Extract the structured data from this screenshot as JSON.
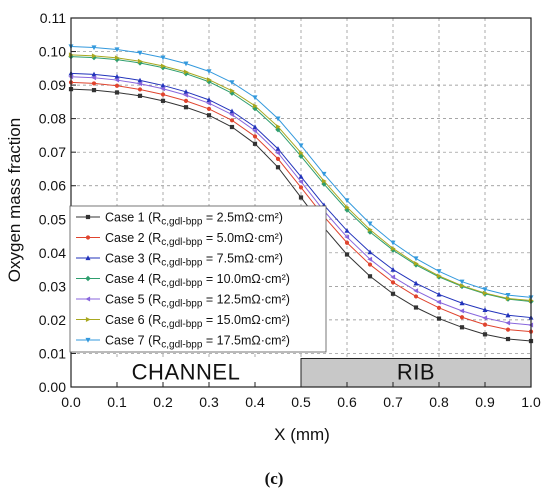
{
  "chart_data": {
    "type": "line",
    "xlabel": "X (mm)",
    "ylabel": "Oxygen mass fraction",
    "xlim": [
      0.0,
      1.0
    ],
    "ylim": [
      0.0,
      0.11
    ],
    "x_ticks": [
      "0.0",
      "0.1",
      "0.2",
      "0.3",
      "0.4",
      "0.5",
      "0.6",
      "0.7",
      "0.8",
      "0.9",
      "1.0"
    ],
    "y_ticks": [
      "0.00",
      "0.01",
      "0.02",
      "0.03",
      "0.04",
      "0.05",
      "0.06",
      "0.07",
      "0.08",
      "0.09",
      "0.10",
      "0.11"
    ],
    "grid": "dashed",
    "legend_position": "lower-left",
    "regions": [
      {
        "label": "CHANNEL",
        "x_range": [
          0.0,
          0.5
        ],
        "fill": "#ffffff"
      },
      {
        "label": "RIB",
        "x_range": [
          0.5,
          1.0
        ],
        "fill": "#c8c8c8"
      }
    ],
    "region_band_ylim": [
      0.0,
      0.0085
    ],
    "caption": "(c)",
    "x": [
      0.0,
      0.05,
      0.1,
      0.15,
      0.2,
      0.25,
      0.3,
      0.35,
      0.4,
      0.45,
      0.5,
      0.55,
      0.6,
      0.65,
      0.7,
      0.75,
      0.8,
      0.85,
      0.9,
      0.95,
      1.0
    ],
    "series": [
      {
        "legend_prefix": "Case 1 (R",
        "legend_sub": "c,gdl-bpp",
        "legend_suffix": " = 2.5mΩ·cm²)",
        "color": "#333333",
        "marker": "square",
        "values": [
          0.0888,
          0.0885,
          0.0878,
          0.0868,
          0.0853,
          0.0834,
          0.081,
          0.0775,
          0.0725,
          0.0655,
          0.0565,
          0.0475,
          0.0395,
          0.033,
          0.0278,
          0.0237,
          0.0204,
          0.0178,
          0.0157,
          0.0143,
          0.0137
        ]
      },
      {
        "legend_prefix": "Case 2 (R",
        "legend_sub": "c,gdl-bpp",
        "legend_suffix": " = 5.0mΩ·cm²)",
        "color": "#e0442e",
        "marker": "circle",
        "values": [
          0.0908,
          0.0905,
          0.0898,
          0.0887,
          0.0872,
          0.0853,
          0.0829,
          0.0795,
          0.0747,
          0.068,
          0.0595,
          0.0508,
          0.043,
          0.0365,
          0.0312,
          0.027,
          0.0236,
          0.0208,
          0.0186,
          0.0171,
          0.0165
        ]
      },
      {
        "legend_prefix": "Case 3 (R",
        "legend_sub": "c,gdl-bpp",
        "legend_suffix": " = 7.5mΩ·cm²)",
        "color": "#2233bb",
        "marker": "triangle",
        "values": [
          0.0935,
          0.0932,
          0.0925,
          0.0914,
          0.0899,
          0.088,
          0.0856,
          0.0822,
          0.0775,
          0.071,
          0.0627,
          0.0542,
          0.0466,
          0.0402,
          0.035,
          0.0309,
          0.0276,
          0.025,
          0.023,
          0.0214,
          0.0207
        ]
      },
      {
        "legend_prefix": "Case 4 (R",
        "legend_sub": "c,gdl-bpp",
        "legend_suffix": "  = 10.0mΩ·cm²)",
        "color": "#2e9e6e",
        "marker": "diamond",
        "values": [
          0.0985,
          0.0982,
          0.0976,
          0.0966,
          0.0952,
          0.0934,
          0.091,
          0.0876,
          0.083,
          0.0767,
          0.0688,
          0.0605,
          0.0528,
          0.0462,
          0.0408,
          0.0364,
          0.0328,
          0.03,
          0.0278,
          0.0262,
          0.0255
        ]
      },
      {
        "legend_prefix": "Case 5 (R",
        "legend_sub": "c,gdl-bpp",
        "legend_suffix": " = 12.5mΩ·cm²)",
        "color": "#8866dd",
        "marker": "triangle-left",
        "values": [
          0.0925,
          0.0922,
          0.0915,
          0.0904,
          0.0889,
          0.087,
          0.0846,
          0.0812,
          0.0764,
          0.0698,
          0.0612,
          0.0525,
          0.0447,
          0.0381,
          0.0328,
          0.0287,
          0.0253,
          0.0227,
          0.0206,
          0.0191,
          0.0185
        ]
      },
      {
        "legend_prefix": "Case 6 (R",
        "legend_sub": "c,gdl-bpp",
        "legend_suffix": " = 15.0mΩ·cm²)",
        "color": "#a8a820",
        "marker": "triangle-right",
        "values": [
          0.099,
          0.0987,
          0.0981,
          0.0971,
          0.0957,
          0.0939,
          0.0916,
          0.0883,
          0.0838,
          0.0776,
          0.0698,
          0.0614,
          0.0536,
          0.0469,
          0.0413,
          0.0368,
          0.0331,
          0.0302,
          0.028,
          0.0264,
          0.0258
        ]
      },
      {
        "legend_prefix": "Case 7 (R",
        "legend_sub": "c,gdl-bpp",
        "legend_suffix": " = 17.5mΩ·cm²)",
        "color": "#3399dd",
        "marker": "triangle-down",
        "values": [
          0.1015,
          0.1012,
          0.1006,
          0.0996,
          0.0982,
          0.0964,
          0.0941,
          0.0908,
          0.0863,
          0.08,
          0.072,
          0.0635,
          0.0556,
          0.0487,
          0.043,
          0.0383,
          0.0345,
          0.0314,
          0.0291,
          0.0274,
          0.0267
        ]
      }
    ]
  }
}
